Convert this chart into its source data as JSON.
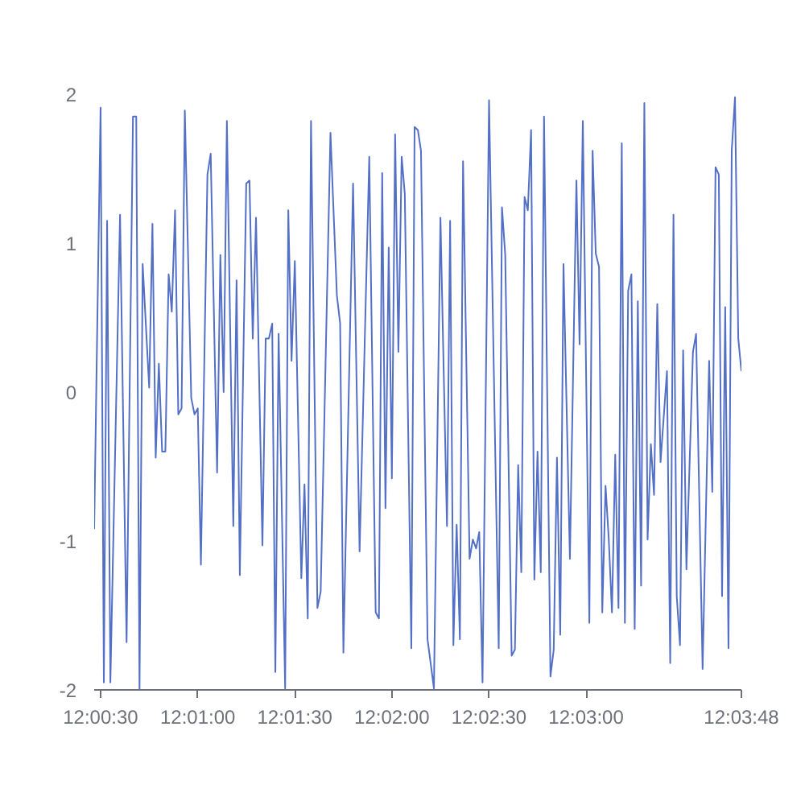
{
  "chart_data": {
    "type": "line",
    "grid": false,
    "marker": "none",
    "line_style": "solid",
    "xlim": [
      12.00778,
      12.06333
    ],
    "xticks": [
      {
        "value": 12.00833,
        "label": "12:00:30"
      },
      {
        "value": 12.01667,
        "label": "12:01:00"
      },
      {
        "value": 12.025,
        "label": "12:01:30"
      },
      {
        "value": 12.03333,
        "label": "12:02:00"
      },
      {
        "value": 12.04167,
        "label": "12:02:30"
      },
      {
        "value": 12.05,
        "label": "12:03:00"
      },
      {
        "value": 12.06333,
        "label": "12:03:48"
      }
    ],
    "ylim": [
      -2,
      2
    ],
    "yticks": [
      -2,
      -1,
      0,
      1,
      2
    ],
    "series": [
      {
        "color": "#5470c6",
        "x": [
          12.00778,
          12.00833,
          12.00861,
          12.00889,
          12.00917,
          12.01,
          12.01056,
          12.01111,
          12.01139,
          12.01167,
          12.01194,
          12.0125,
          12.01278,
          12.01306,
          12.01333,
          12.01361,
          12.01389,
          12.01417,
          12.01444,
          12.01472,
          12.015,
          12.01528,
          12.01556,
          12.01611,
          12.01639,
          12.01667,
          12.01694,
          12.0175,
          12.01778,
          12.01833,
          12.01861,
          12.01889,
          12.01917,
          12.01972,
          12.02,
          12.02028,
          12.02083,
          12.02111,
          12.02139,
          12.02167,
          12.02222,
          12.0225,
          12.02278,
          12.02306,
          12.02333,
          12.02361,
          12.02417,
          12.02444,
          12.02472,
          12.025,
          12.02556,
          12.02583,
          12.02611,
          12.02639,
          12.02694,
          12.02722,
          12.02806,
          12.02861,
          12.02889,
          12.02917,
          12.03,
          12.03056,
          12.03139,
          12.03194,
          12.03222,
          12.0325,
          12.03278,
          12.03306,
          12.03333,
          12.03361,
          12.03389,
          12.03417,
          12.03444,
          12.035,
          12.03528,
          12.03556,
          12.03583,
          12.03639,
          12.03694,
          12.0375,
          12.03806,
          12.03833,
          12.03861,
          12.03889,
          12.03917,
          12.03944,
          12.04,
          12.04028,
          12.04056,
          12.04083,
          12.04111,
          12.04167,
          12.0425,
          12.04278,
          12.04306,
          12.04361,
          12.04389,
          12.04417,
          12.04444,
          12.04472,
          12.045,
          12.04528,
          12.04556,
          12.04583,
          12.04611,
          12.04639,
          12.04694,
          12.04722,
          12.0475,
          12.04778,
          12.04806,
          12.04861,
          12.04917,
          12.04944,
          12.04972,
          12.05028,
          12.05056,
          12.05083,
          12.05111,
          12.05139,
          12.05167,
          12.05194,
          12.05222,
          12.0525,
          12.05278,
          12.05306,
          12.05333,
          12.05361,
          12.05389,
          12.05417,
          12.05444,
          12.05472,
          12.055,
          12.05528,
          12.05556,
          12.05583,
          12.05611,
          12.05639,
          12.05694,
          12.05722,
          12.0575,
          12.05778,
          12.05806,
          12.05833,
          12.05861,
          12.05917,
          12.05944,
          12.06,
          12.06056,
          12.06083,
          12.06111,
          12.06139,
          12.06167,
          12.06194,
          12.06222,
          12.0625,
          12.06278,
          12.06306,
          12.06333
        ],
        "values": [
          -0.92,
          1.91,
          -1.95,
          1.15,
          -1.95,
          1.19,
          -1.68,
          1.85,
          1.85,
          -2.0,
          0.86,
          0.03,
          1.13,
          -0.44,
          0.19,
          -0.4,
          -0.4,
          0.79,
          0.54,
          1.22,
          -0.15,
          -0.11,
          1.89,
          -0.04,
          -0.15,
          -0.11,
          -1.16,
          1.46,
          1.6,
          -0.54,
          0.92,
          0.0,
          1.82,
          -0.9,
          0.75,
          -1.23,
          1.4,
          1.42,
          0.36,
          1.17,
          -1.03,
          0.36,
          0.36,
          0.46,
          -1.88,
          0.39,
          -1.99,
          1.22,
          0.21,
          0.88,
          -1.25,
          -0.62,
          -1.52,
          1.82,
          -1.45,
          -1.34,
          1.74,
          0.65,
          0.46,
          -1.75,
          1.4,
          -1.07,
          1.58,
          -1.48,
          -1.52,
          1.47,
          -0.78,
          0.97,
          -0.58,
          1.73,
          0.27,
          1.58,
          1.33,
          -1.72,
          1.78,
          1.76,
          1.62,
          -1.66,
          -1.99,
          1.17,
          -0.9,
          1.15,
          -1.7,
          -0.89,
          -1.66,
          1.55,
          -1.12,
          -0.99,
          -1.05,
          -0.94,
          -1.95,
          1.96,
          -1.72,
          1.24,
          0.92,
          -1.77,
          -1.73,
          -0.49,
          -1.21,
          1.31,
          1.22,
          1.76,
          -1.26,
          -0.4,
          -1.21,
          1.85,
          -1.91,
          -1.73,
          -0.44,
          -1.63,
          0.86,
          -1.12,
          1.42,
          0.32,
          1.82,
          -1.55,
          1.62,
          0.93,
          0.84,
          -1.48,
          -0.63,
          -0.98,
          -1.48,
          -0.42,
          -1.45,
          1.67,
          -1.55,
          0.68,
          0.79,
          -1.59,
          0.61,
          -1.3,
          1.94,
          -0.99,
          -0.35,
          -0.69,
          0.59,
          -0.47,
          0.14,
          -1.82,
          1.19,
          -1.37,
          -1.7,
          0.28,
          -1.19,
          0.27,
          0.39,
          -1.86,
          0.21,
          -0.67,
          1.51,
          1.46,
          -1.37,
          0.57,
          -1.72,
          1.62,
          1.98,
          0.36,
          0.14
        ]
      }
    ]
  }
}
